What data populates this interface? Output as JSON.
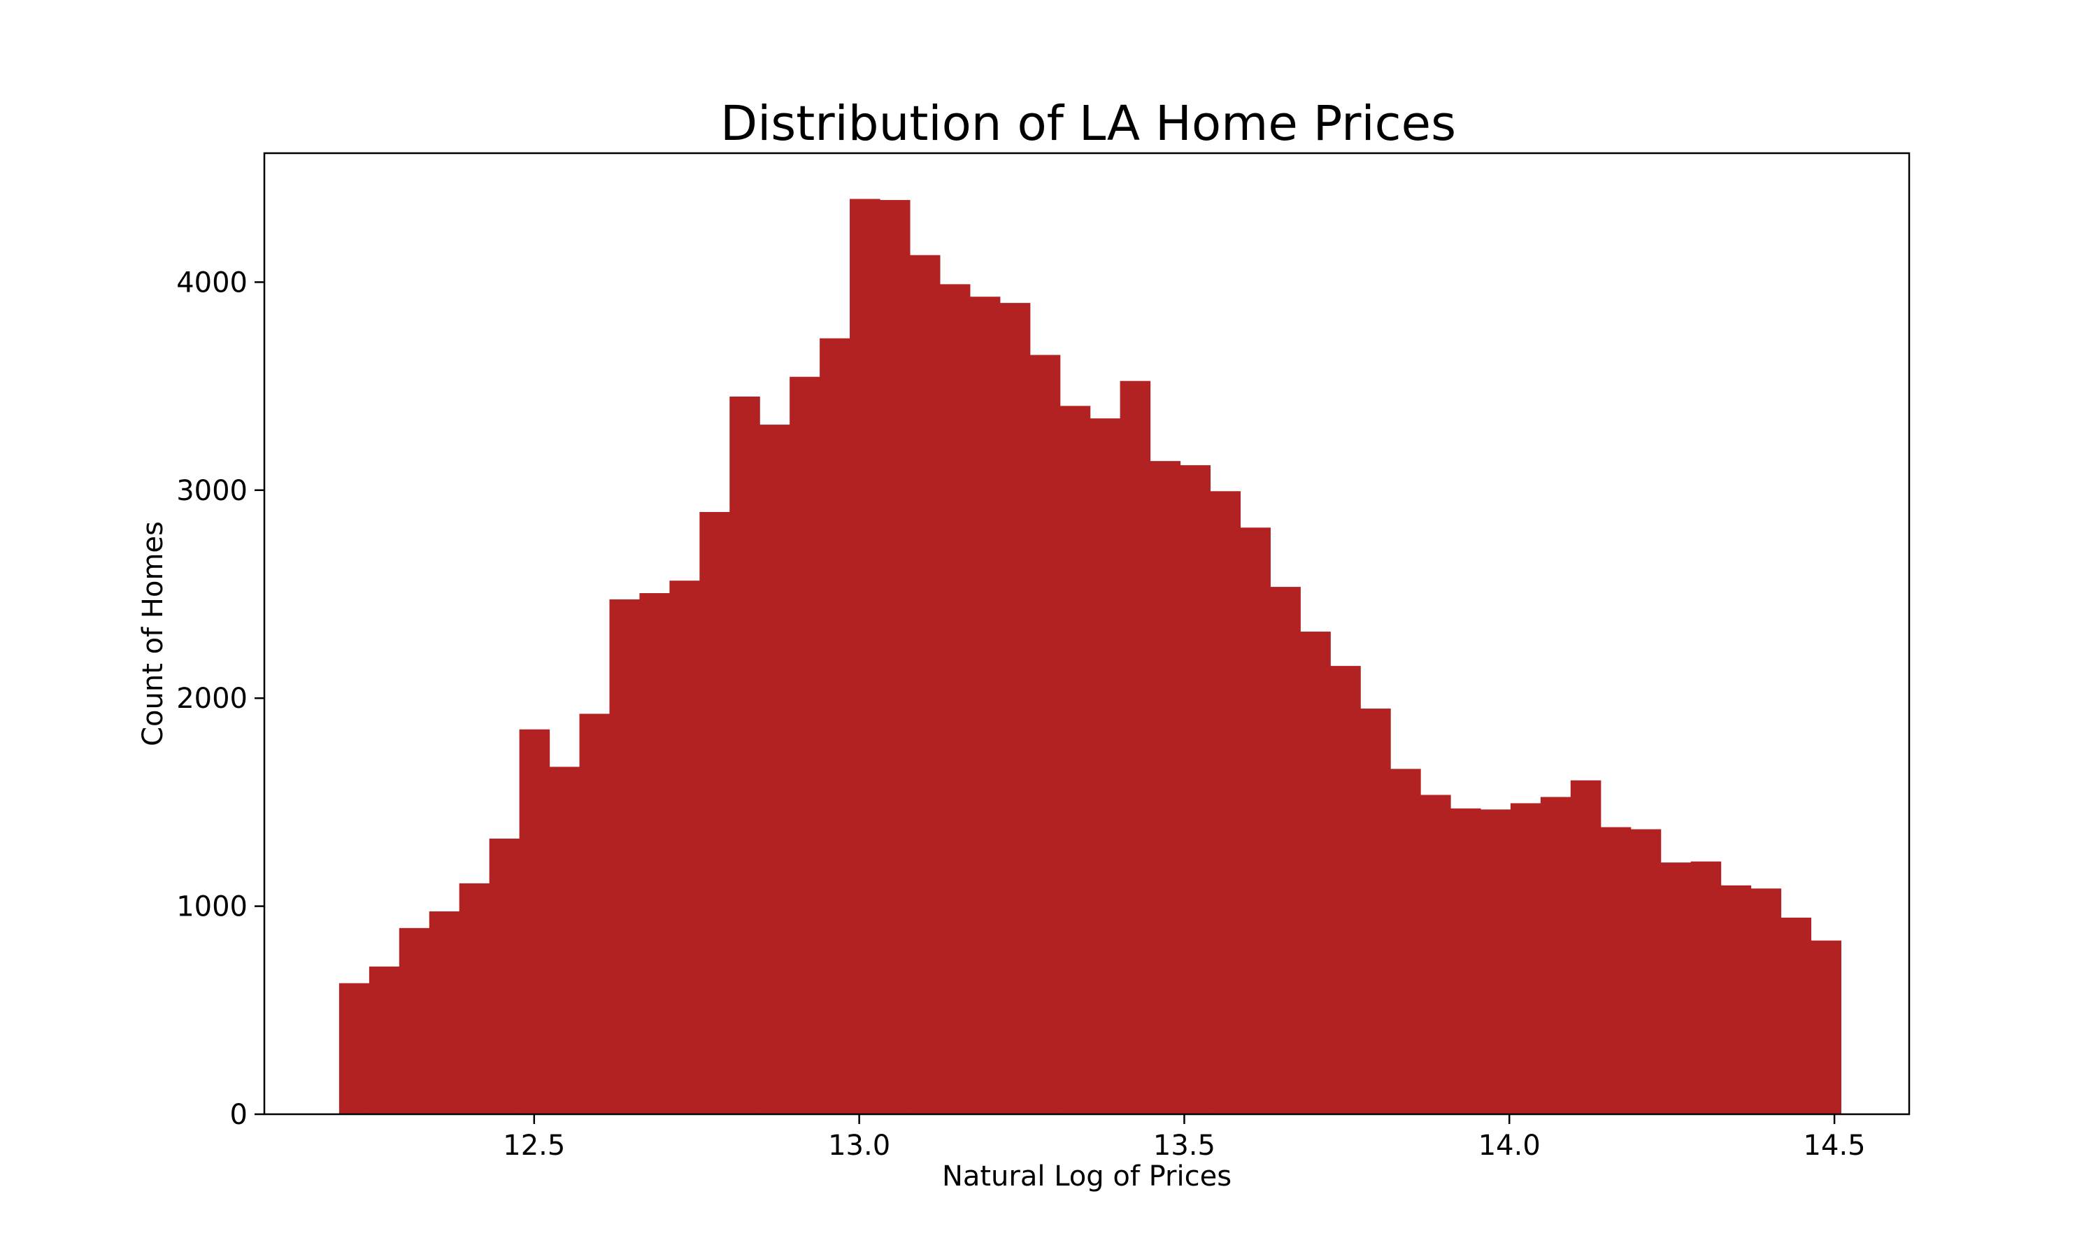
{
  "chart_data": {
    "type": "bar",
    "title": "Distribution of LA Home Prices",
    "xlabel": "Natural Log of Prices",
    "ylabel": "Count of Homes",
    "bar_color": "#b22222",
    "xlim": [
      12.085,
      14.615
    ],
    "ylim": [
      0,
      4620
    ],
    "xticks": [
      12.5,
      13.0,
      13.5,
      14.0,
      14.5
    ],
    "xtick_labels": [
      "12.5",
      "13.0",
      "13.5",
      "14.0",
      "14.5"
    ],
    "yticks": [
      0,
      1000,
      2000,
      3000,
      4000
    ],
    "ytick_labels": [
      "0",
      "1000",
      "2000",
      "3000",
      "4000"
    ],
    "grid": false,
    "bins": {
      "start": 12.2,
      "end": 14.51,
      "count": 50
    },
    "values": [
      630,
      710,
      895,
      975,
      1110,
      1325,
      1850,
      1670,
      1925,
      2475,
      2505,
      2565,
      2895,
      3450,
      3315,
      3545,
      3730,
      4400,
      4395,
      4130,
      3990,
      3930,
      3900,
      3650,
      3405,
      3345,
      3525,
      3140,
      3120,
      2995,
      2820,
      2535,
      2320,
      2155,
      1950,
      1660,
      1535,
      1470,
      1465,
      1495,
      1525,
      1605,
      1380,
      1370,
      1210,
      1215,
      1100,
      1085,
      945,
      835
    ]
  }
}
